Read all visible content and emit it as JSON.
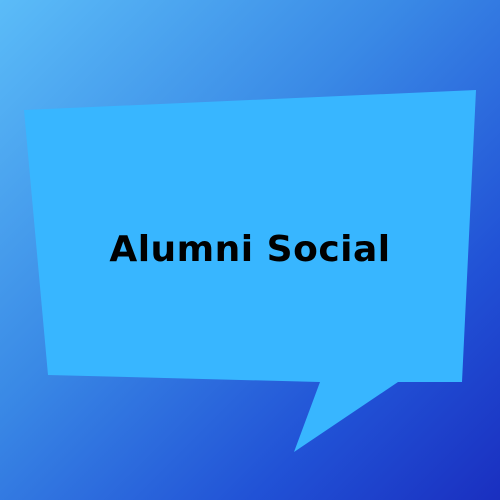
{
  "graphic": {
    "title": "Alumni Social",
    "icon": "speech-bubble",
    "colors": {
      "background_top": "#5bbcf8",
      "background_bottom": "#1a2fc0",
      "bubble_fill": "#38b6ff",
      "text": "#000000"
    }
  }
}
